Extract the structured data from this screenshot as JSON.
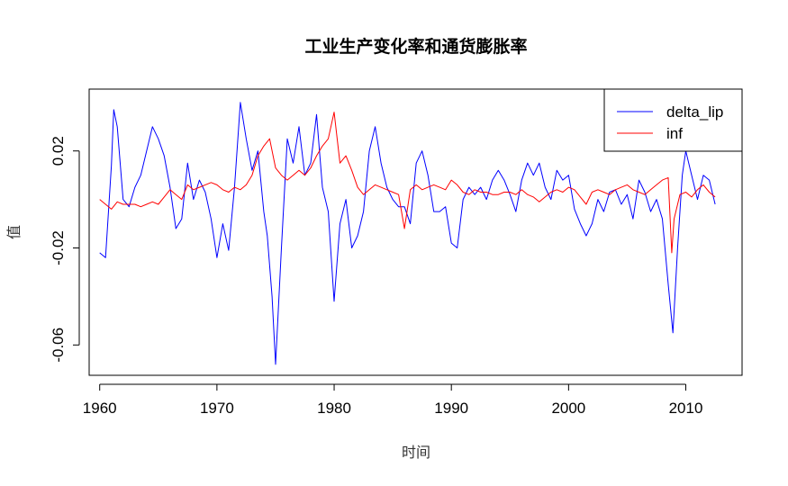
{
  "chart_data": {
    "type": "line",
    "title": "工业生产变化率和通货膨胀率",
    "xlabel": "时间",
    "ylabel": "值",
    "xlim": [
      1959.1,
      2014.8
    ],
    "ylim": [
      -0.0725,
      0.0455
    ],
    "xticks": [
      1960,
      1970,
      1980,
      1990,
      2000,
      2010
    ],
    "xtick_labels": [
      "1960",
      "1970",
      "1980",
      "1990",
      "2000",
      "2010"
    ],
    "yticks": [
      0.02,
      -0.02,
      -0.06
    ],
    "ytick_labels": [
      "0.02",
      "-0.02",
      "-0.06"
    ],
    "legend_position": "top-right",
    "grid": false,
    "series": [
      {
        "name": "delta_lip",
        "color": "#0000ff",
        "x": [
          1960.0,
          1960.5,
          1961.0,
          1961.2,
          1961.5,
          1962.0,
          1962.5,
          1963.0,
          1963.5,
          1964.0,
          1964.5,
          1965.0,
          1965.5,
          1966.0,
          1966.5,
          1967.0,
          1967.5,
          1968.0,
          1968.5,
          1969.0,
          1969.5,
          1970.0,
          1970.5,
          1971.0,
          1971.5,
          1972.0,
          1972.5,
          1973.0,
          1973.5,
          1974.0,
          1974.3,
          1974.7,
          1975.0,
          1975.5,
          1976.0,
          1976.5,
          1977.0,
          1977.5,
          1978.0,
          1978.5,
          1979.0,
          1979.5,
          1980.0,
          1980.5,
          1981.0,
          1981.5,
          1982.0,
          1982.5,
          1983.0,
          1983.5,
          1984.0,
          1984.5,
          1985.0,
          1985.5,
          1986.0,
          1986.5,
          1987.0,
          1987.5,
          1988.0,
          1988.5,
          1989.0,
          1989.5,
          1990.0,
          1990.5,
          1991.0,
          1991.5,
          1992.0,
          1992.5,
          1993.0,
          1993.5,
          1994.0,
          1994.5,
          1995.0,
          1995.5,
          1996.0,
          1996.5,
          1997.0,
          1997.5,
          1998.0,
          1998.5,
          1999.0,
          1999.5,
          2000.0,
          2000.5,
          2001.0,
          2001.5,
          2002.0,
          2002.5,
          2003.0,
          2003.5,
          2004.0,
          2004.5,
          2005.0,
          2005.5,
          2006.0,
          2006.5,
          2007.0,
          2007.5,
          2008.0,
          2008.5,
          2008.9,
          2009.3,
          2009.7,
          2010.0,
          2010.5,
          2011.0,
          2011.5,
          2012.0,
          2012.5
        ],
        "values": [
          -0.022,
          -0.024,
          0.014,
          0.037,
          0.03,
          0.0,
          -0.003,
          0.005,
          0.01,
          0.02,
          0.03,
          0.025,
          0.018,
          0.005,
          -0.012,
          -0.008,
          0.015,
          0.0,
          0.008,
          0.003,
          -0.008,
          -0.024,
          -0.01,
          -0.021,
          0.005,
          0.04,
          0.025,
          0.012,
          0.02,
          -0.005,
          -0.015,
          -0.04,
          -0.068,
          -0.02,
          0.025,
          0.015,
          0.03,
          0.01,
          0.015,
          0.035,
          0.005,
          -0.005,
          -0.042,
          -0.01,
          0.0,
          -0.02,
          -0.015,
          -0.005,
          0.02,
          0.03,
          0.015,
          0.005,
          0.0,
          -0.003,
          -0.003,
          -0.01,
          0.015,
          0.02,
          0.01,
          -0.005,
          -0.005,
          -0.003,
          -0.018,
          -0.02,
          0.0,
          0.005,
          0.002,
          0.005,
          0.0,
          0.008,
          0.012,
          0.008,
          0.002,
          -0.005,
          0.008,
          0.015,
          0.01,
          0.015,
          0.005,
          0.0,
          0.012,
          0.008,
          0.01,
          -0.004,
          -0.01,
          -0.015,
          -0.01,
          0.0,
          -0.005,
          0.003,
          0.004,
          -0.002,
          0.002,
          -0.008,
          0.008,
          0.003,
          -0.005,
          0.0,
          -0.008,
          -0.035,
          -0.055,
          -0.02,
          0.01,
          0.02,
          0.01,
          0.0,
          0.01,
          0.008,
          -0.002
        ]
      },
      {
        "name": "inf",
        "color": "#ff0000",
        "x": [
          1960.0,
          1960.5,
          1961.0,
          1961.5,
          1962.0,
          1962.5,
          1963.0,
          1963.5,
          1964.0,
          1964.5,
          1965.0,
          1965.5,
          1966.0,
          1966.5,
          1967.0,
          1967.5,
          1968.0,
          1968.5,
          1969.0,
          1969.5,
          1970.0,
          1970.5,
          1971.0,
          1971.5,
          1972.0,
          1972.5,
          1973.0,
          1973.5,
          1974.0,
          1974.5,
          1975.0,
          1975.5,
          1976.0,
          1976.5,
          1977.0,
          1977.5,
          1978.0,
          1978.5,
          1979.0,
          1979.5,
          1980.0,
          1980.5,
          1981.0,
          1981.5,
          1982.0,
          1982.5,
          1983.0,
          1983.5,
          1984.0,
          1984.5,
          1985.0,
          1985.5,
          1986.0,
          1986.5,
          1987.0,
          1987.5,
          1988.0,
          1988.5,
          1989.0,
          1989.5,
          1990.0,
          1990.5,
          1991.0,
          1991.5,
          1992.0,
          1992.5,
          1993.0,
          1993.5,
          1994.0,
          1994.5,
          1995.0,
          1995.5,
          1996.0,
          1996.5,
          1997.0,
          1997.5,
          1998.0,
          1998.5,
          1999.0,
          1999.5,
          2000.0,
          2000.5,
          2001.0,
          2001.5,
          2002.0,
          2002.5,
          2003.0,
          2003.5,
          2004.0,
          2004.5,
          2005.0,
          2005.5,
          2006.0,
          2006.5,
          2007.0,
          2007.5,
          2008.0,
          2008.5,
          2008.8,
          2009.0,
          2009.5,
          2010.0,
          2010.5,
          2011.0,
          2011.5,
          2012.0,
          2012.5
        ],
        "values": [
          0.0,
          -0.002,
          -0.004,
          -0.001,
          -0.002,
          -0.002,
          -0.002,
          -0.003,
          -0.002,
          -0.001,
          -0.002,
          0.001,
          0.004,
          0.002,
          0.0,
          0.006,
          0.004,
          0.005,
          0.006,
          0.007,
          0.006,
          0.004,
          0.003,
          0.005,
          0.004,
          0.006,
          0.01,
          0.018,
          0.022,
          0.025,
          0.013,
          0.01,
          0.008,
          0.01,
          0.012,
          0.01,
          0.013,
          0.018,
          0.022,
          0.025,
          0.036,
          0.015,
          0.018,
          0.012,
          0.005,
          0.002,
          0.004,
          0.006,
          0.005,
          0.004,
          0.003,
          0.002,
          -0.012,
          0.004,
          0.006,
          0.004,
          0.005,
          0.006,
          0.005,
          0.004,
          0.008,
          0.006,
          0.003,
          0.002,
          0.004,
          0.003,
          0.003,
          0.002,
          0.002,
          0.003,
          0.003,
          0.002,
          0.004,
          0.002,
          0.001,
          -0.001,
          0.001,
          0.003,
          0.004,
          0.003,
          0.005,
          0.004,
          0.001,
          -0.002,
          0.003,
          0.004,
          0.003,
          0.002,
          0.004,
          0.005,
          0.006,
          0.004,
          0.003,
          0.002,
          0.004,
          0.006,
          0.008,
          0.009,
          -0.022,
          -0.008,
          0.002,
          0.003,
          0.001,
          0.004,
          0.006,
          0.003,
          0.001
        ]
      }
    ]
  }
}
